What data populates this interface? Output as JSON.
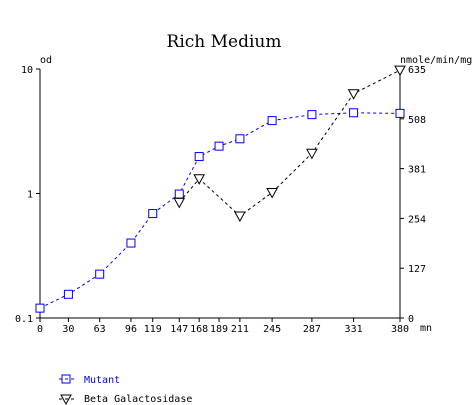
{
  "chart_data": {
    "type": "line",
    "title": "Rich Medium",
    "left_axis": {
      "label": "od",
      "scale": "log",
      "range": [
        0.1,
        10
      ],
      "ticks": [
        {
          "value": 0.1,
          "label": "0.1"
        },
        {
          "value": 1,
          "label": "1"
        },
        {
          "value": 10,
          "label": "10"
        }
      ]
    },
    "right_axis": {
      "label": "nmole/min/mg",
      "scale": "linear",
      "range": [
        0,
        635
      ],
      "ticks": [
        {
          "value": 0,
          "label": "0"
        },
        {
          "value": 127,
          "label": "127"
        },
        {
          "value": 254,
          "label": "254"
        },
        {
          "value": 381,
          "label": "381"
        },
        {
          "value": 508,
          "label": "508"
        },
        {
          "value": 635,
          "label": "635"
        }
      ]
    },
    "x_axis": {
      "unit_label": "mn",
      "range": [
        0,
        380
      ],
      "ticks": [
        0,
        30,
        63,
        96,
        119,
        147,
        168,
        189,
        211,
        245,
        287,
        331,
        380
      ]
    },
    "series": [
      {
        "name": "Mutant",
        "axis": "left",
        "color": "#0000ff",
        "marker": "square",
        "x": [
          0,
          30,
          63,
          96,
          119,
          147,
          168,
          189,
          211,
          245,
          287,
          331,
          380
        ],
        "y": [
          0.12,
          0.155,
          0.225,
          0.4,
          0.69,
          0.99,
          1.98,
          2.4,
          2.75,
          3.85,
          4.3,
          4.45,
          4.4
        ]
      },
      {
        "name": "Beta Galactosidase",
        "axis": "right",
        "color": "#000000",
        "marker": "triangle-down",
        "x": [
          147,
          168,
          211,
          245,
          287,
          331,
          380
        ],
        "y": [
          295,
          355,
          260,
          320,
          420,
          572,
          632
        ]
      }
    ],
    "grid": false,
    "legend_position": "bottom-left"
  }
}
